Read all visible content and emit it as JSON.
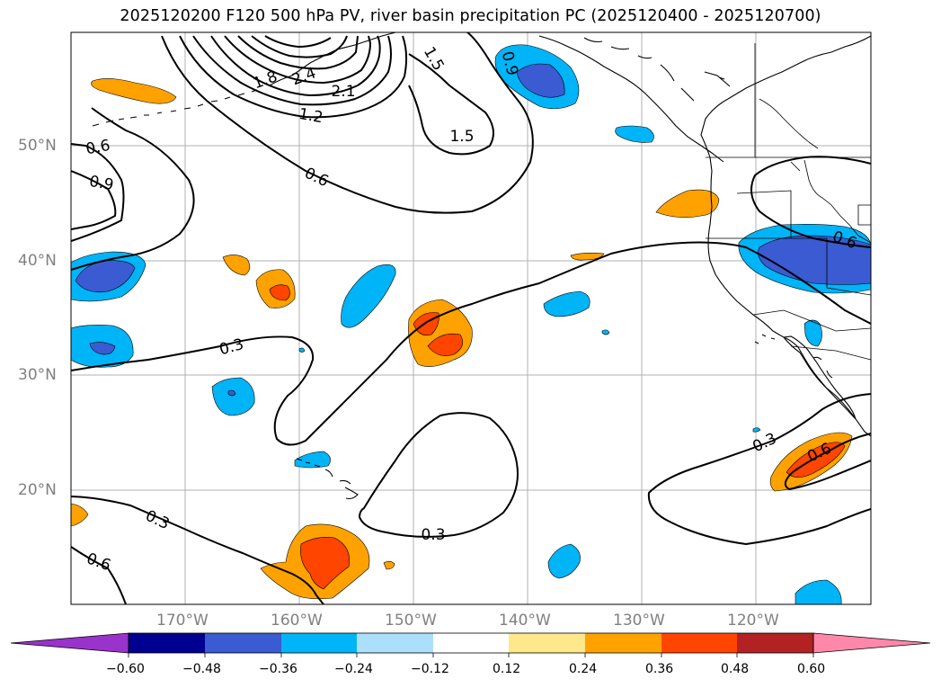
{
  "title": "2025120200 F120 500 hPa PV, river basin precipitation PC (2025120400 - 2025120700)",
  "lat_labels": [
    "50°N",
    "40°N",
    "30°N",
    "20°N"
  ],
  "lon_labels": [
    "170°W",
    "160°W",
    "150°W",
    "140°W",
    "130°W",
    "120°W"
  ],
  "contour_labels": [
    "0.6",
    "0.9",
    "1.8",
    "2.4",
    "2.1",
    "1.2",
    "1.5",
    "1.5",
    "0.6",
    "0.9",
    "0.6",
    "0.3",
    "0.3",
    "0.3",
    "0.3",
    "0.6",
    "0.6"
  ],
  "colorbar": {
    "ticks": [
      "−0.60",
      "−0.48",
      "−0.36",
      "−0.24",
      "−0.12",
      "0.12",
      "0.24",
      "0.36",
      "0.48",
      "0.60"
    ],
    "colors": [
      "#9933cc",
      "#000090",
      "#3a5bd1",
      "#00b4f8",
      "#ace0fa",
      "#ffffff",
      "#ffe88c",
      "#ffa200",
      "#ff4500",
      "#b22222",
      "#ff88aa"
    ]
  },
  "colors": {
    "land_outline": "#000000",
    "grid": "#b0b0b0",
    "axis_text": "#808080"
  }
}
